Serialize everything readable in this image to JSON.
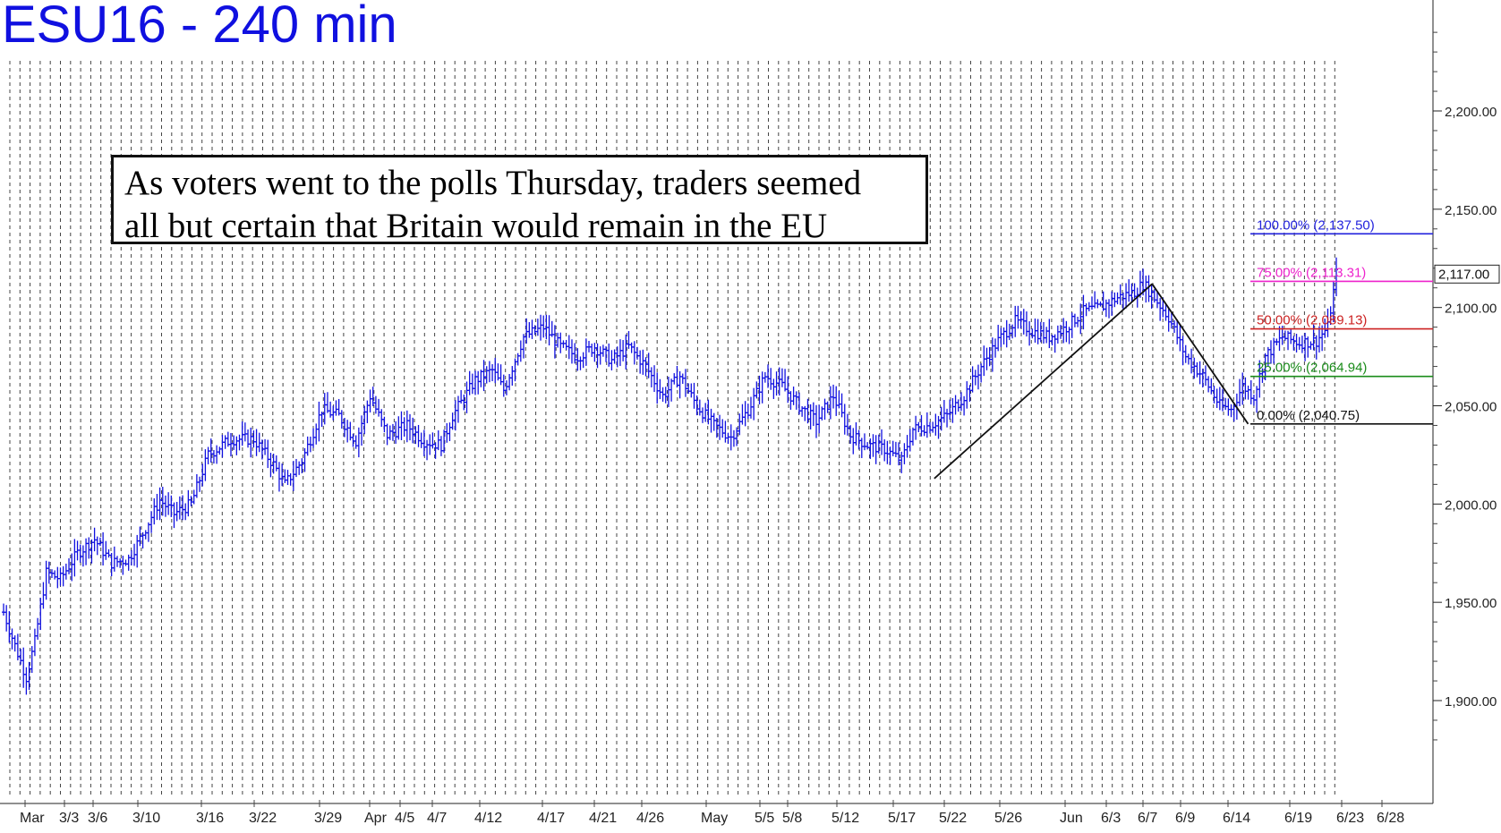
{
  "chart_data": {
    "type": "candlestick",
    "title": "ESU16 - 240 min",
    "annotation": [
      "As voters went to the polls Thursday, traders seemed",
      "all but certain that Britain would remain in the EU"
    ],
    "ylim": [
      1860,
      2255
    ],
    "x_tick_labels": [
      "Mar",
      "3/3",
      "3/6",
      "3/10",
      "3/16",
      "3/22",
      "3/29",
      "Apr",
      "4/5",
      "4/7",
      "4/12",
      "4/17",
      "4/21",
      "4/26",
      "May",
      "5/5",
      "5/8",
      "5/12",
      "5/17",
      "5/22",
      "5/26",
      "Jun",
      "6/3",
      "6/7",
      "6/9",
      "6/14",
      "6/19",
      "6/23",
      "6/28"
    ],
    "y_tick_labels": [
      {
        "value": 1900,
        "label": "1,900.00"
      },
      {
        "value": 1950,
        "label": "1,950.00"
      },
      {
        "value": 2000,
        "label": "2,000.00"
      },
      {
        "value": 2050,
        "label": "2,050.00"
      },
      {
        "value": 2100,
        "label": "2,100.00"
      },
      {
        "value": 2150,
        "label": "2,150.00"
      },
      {
        "value": 2200,
        "label": "2,200.00"
      }
    ],
    "last_price": {
      "value": 2117.0,
      "label": "2,117.00",
      "color": "#1010e0"
    },
    "price_path": [
      {
        "t": 0,
        "p": 1945
      },
      {
        "t": 4,
        "p": 1928
      },
      {
        "t": 8,
        "p": 1912
      },
      {
        "t": 11,
        "p": 1930
      },
      {
        "t": 15,
        "p": 1965
      },
      {
        "t": 20,
        "p": 1962
      },
      {
        "t": 26,
        "p": 1975
      },
      {
        "t": 32,
        "p": 1982
      },
      {
        "t": 38,
        "p": 1970
      },
      {
        "t": 44,
        "p": 1972
      },
      {
        "t": 49,
        "p": 1985
      },
      {
        "t": 55,
        "p": 2002
      },
      {
        "t": 60,
        "p": 1995
      },
      {
        "t": 66,
        "p": 2000
      },
      {
        "t": 72,
        "p": 2025
      },
      {
        "t": 80,
        "p": 2033
      },
      {
        "t": 88,
        "p": 2033
      },
      {
        "t": 95,
        "p": 2020
      },
      {
        "t": 99,
        "p": 2010
      },
      {
        "t": 105,
        "p": 2022
      },
      {
        "t": 112,
        "p": 2048
      },
      {
        "t": 118,
        "p": 2045
      },
      {
        "t": 124,
        "p": 2032
      },
      {
        "t": 129,
        "p": 2055
      },
      {
        "t": 135,
        "p": 2035
      },
      {
        "t": 142,
        "p": 2040
      },
      {
        "t": 148,
        "p": 2032
      },
      {
        "t": 154,
        "p": 2030
      },
      {
        "t": 158,
        "p": 2045
      },
      {
        "t": 166,
        "p": 2063
      },
      {
        "t": 172,
        "p": 2068
      },
      {
        "t": 176,
        "p": 2058
      },
      {
        "t": 183,
        "p": 2085
      },
      {
        "t": 190,
        "p": 2090
      },
      {
        "t": 196,
        "p": 2080
      },
      {
        "t": 202,
        "p": 2075
      },
      {
        "t": 208,
        "p": 2080
      },
      {
        "t": 214,
        "p": 2073
      },
      {
        "t": 220,
        "p": 2080
      },
      {
        "t": 226,
        "p": 2070
      },
      {
        "t": 232,
        "p": 2055
      },
      {
        "t": 238,
        "p": 2065
      },
      {
        "t": 244,
        "p": 2050
      },
      {
        "t": 250,
        "p": 2040
      },
      {
        "t": 256,
        "p": 2034
      },
      {
        "t": 262,
        "p": 2048
      },
      {
        "t": 268,
        "p": 2065
      },
      {
        "t": 274,
        "p": 2060
      },
      {
        "t": 280,
        "p": 2050
      },
      {
        "t": 286,
        "p": 2042
      },
      {
        "t": 292,
        "p": 2055
      },
      {
        "t": 298,
        "p": 2035
      },
      {
        "t": 304,
        "p": 2030
      },
      {
        "t": 310,
        "p": 2028
      },
      {
        "t": 316,
        "p": 2022
      },
      {
        "t": 320,
        "p": 2038
      },
      {
        "t": 326,
        "p": 2040
      },
      {
        "t": 332,
        "p": 2045
      },
      {
        "t": 338,
        "p": 2055
      },
      {
        "t": 344,
        "p": 2070
      },
      {
        "t": 350,
        "p": 2083
      },
      {
        "t": 356,
        "p": 2093
      },
      {
        "t": 362,
        "p": 2088
      },
      {
        "t": 368,
        "p": 2085
      },
      {
        "t": 374,
        "p": 2090
      },
      {
        "t": 380,
        "p": 2098
      },
      {
        "t": 386,
        "p": 2100
      },
      {
        "t": 392,
        "p": 2105
      },
      {
        "t": 398,
        "p": 2108
      },
      {
        "t": 401,
        "p": 2112
      },
      {
        "t": 404,
        "p": 2107
      },
      {
        "t": 410,
        "p": 2095
      },
      {
        "t": 416,
        "p": 2075
      },
      {
        "t": 422,
        "p": 2065
      },
      {
        "t": 428,
        "p": 2050
      },
      {
        "t": 432,
        "p": 2048
      },
      {
        "t": 436,
        "p": 2060
      },
      {
        "t": 440,
        "p": 2055
      },
      {
        "t": 444,
        "p": 2075
      },
      {
        "t": 450,
        "p": 2085
      },
      {
        "t": 456,
        "p": 2082
      },
      {
        "t": 462,
        "p": 2083
      },
      {
        "t": 466,
        "p": 2090
      },
      {
        "t": 469,
        "p": 2117
      }
    ],
    "fibonacci_levels": [
      {
        "label": "100.00% (2,137.50)",
        "value": 2137.5,
        "color": "#2222dd"
      },
      {
        "label": "75.00% (2,113.31)",
        "value": 2113.31,
        "color": "#ee22cc"
      },
      {
        "label": "50.00% (2,089.13)",
        "value": 2089.13,
        "color": "#cc2222"
      },
      {
        "label": "25.00% (2,064.94)",
        "value": 2064.94,
        "color": "#1a8c1a"
      },
      {
        "label": "0.00% (2,040.75)",
        "value": 2040.75,
        "color": "#111111"
      }
    ],
    "trend_lines": [
      {
        "from": {
          "t": 0.652,
          "p": 2013
        },
        "to": {
          "t": 0.804,
          "p": 2112
        }
      },
      {
        "from": {
          "t": 0.804,
          "p": 2112
        },
        "to": {
          "t": 0.871,
          "p": 2040.75
        }
      }
    ],
    "grid": true,
    "colors": {
      "bars": "#1010e0",
      "title": "#1010e0",
      "grid": "#555555"
    }
  }
}
